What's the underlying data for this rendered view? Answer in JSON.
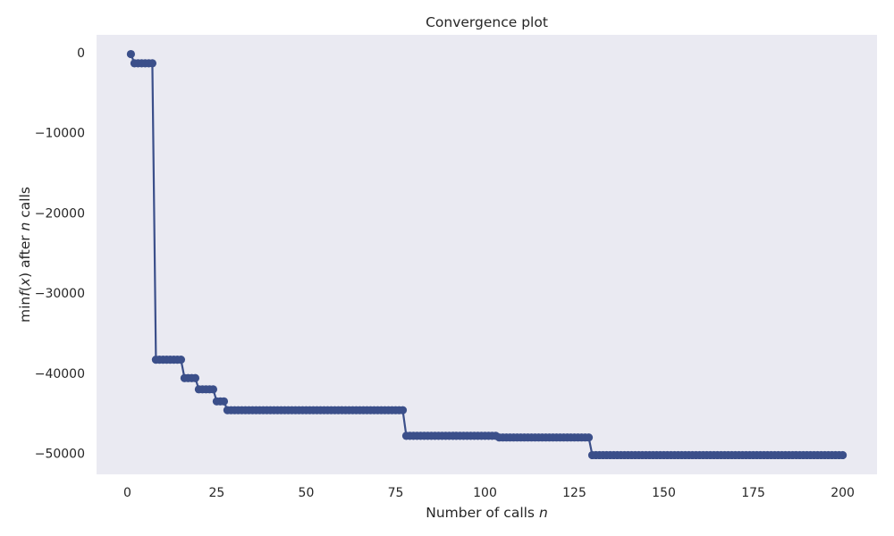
{
  "chart_data": {
    "type": "line",
    "title": "Convergence plot",
    "xlabel": {
      "pre": "Number of calls ",
      "var": "n"
    },
    "ylabel": {
      "pre": "min",
      "fx": "f",
      "open": "(",
      "xv": "x",
      "close": ")",
      "mid": " after ",
      "nvar": "n",
      "post": " calls"
    },
    "xlim": [
      -8.6,
      209.6
    ],
    "ylim": [
      -52600,
      2200
    ],
    "xticks": [
      0,
      25,
      50,
      75,
      100,
      125,
      150,
      175,
      200
    ],
    "yticks": [
      0,
      -10000,
      -20000,
      -30000,
      -40000,
      -50000
    ],
    "ytick_labels": [
      "0",
      "−10000",
      "−20000",
      "−30000",
      "−40000",
      "−50000"
    ],
    "grid": false,
    "colors": {
      "background": "#eaeaf2",
      "series": "#3b4f8a"
    },
    "x_range": [
      1,
      200
    ],
    "steps": [
      {
        "from": 1,
        "y": -200
      },
      {
        "from": 2,
        "y": -1350
      },
      {
        "from": 8,
        "y": -38300
      },
      {
        "from": 16,
        "y": -40600
      },
      {
        "from": 20,
        "y": -42000
      },
      {
        "from": 25,
        "y": -43500
      },
      {
        "from": 28,
        "y": -44600
      },
      {
        "from": 78,
        "y": -47800
      },
      {
        "from": 104,
        "y": -48000
      },
      {
        "from": 130,
        "y": -50200
      }
    ]
  }
}
